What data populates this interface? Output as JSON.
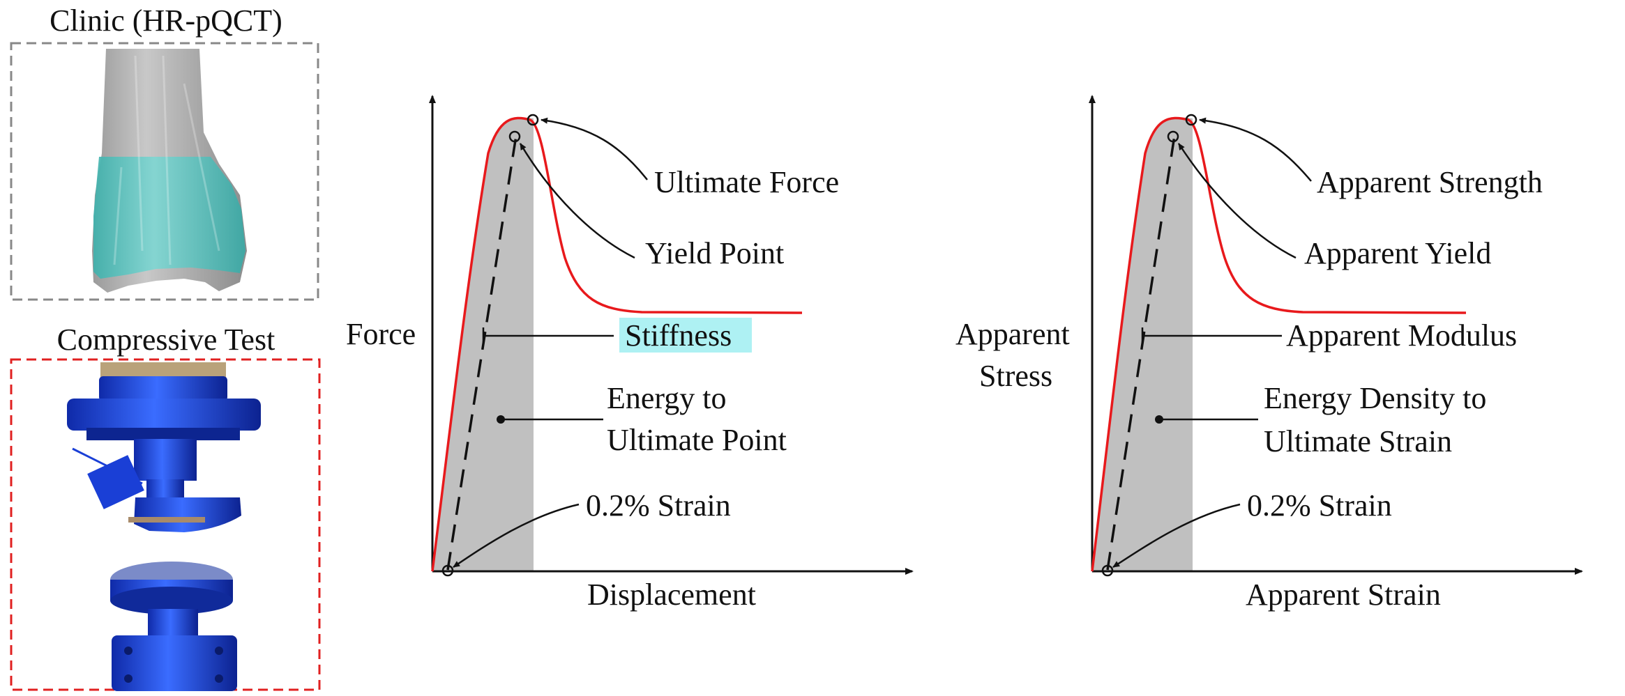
{
  "panels": {
    "clinic_title": "Clinic (HR-pQCT)",
    "test_title": "Compressive Test"
  },
  "left_plot": {
    "y_label": "Force",
    "x_label": "Displacement",
    "ultimate": "Ultimate Force",
    "yield": "Yield Point",
    "stiffness": "Stiffness",
    "energy_line1": "Energy to",
    "energy_line2": "Ultimate Point",
    "offset": "0.2% Strain"
  },
  "right_plot": {
    "y_label_line1": "Apparent",
    "y_label_line2": "Stress",
    "x_label": "Apparent Strain",
    "ultimate": "Apparent Strength",
    "yield": "Apparent Yield",
    "stiffness": "Apparent Modulus",
    "energy_line1": "Energy Density to",
    "energy_line2": "Ultimate Strain",
    "offset": "0.2% Strain"
  },
  "colors": {
    "curve": "#e8191c",
    "shade": "#c0c0c0",
    "highlight": "#aef1f3",
    "clinic_border": "#888888",
    "test_border": "#e02020",
    "bone_overlay": "#5fc9c4",
    "fixture_blue": "#1a3fd6"
  }
}
